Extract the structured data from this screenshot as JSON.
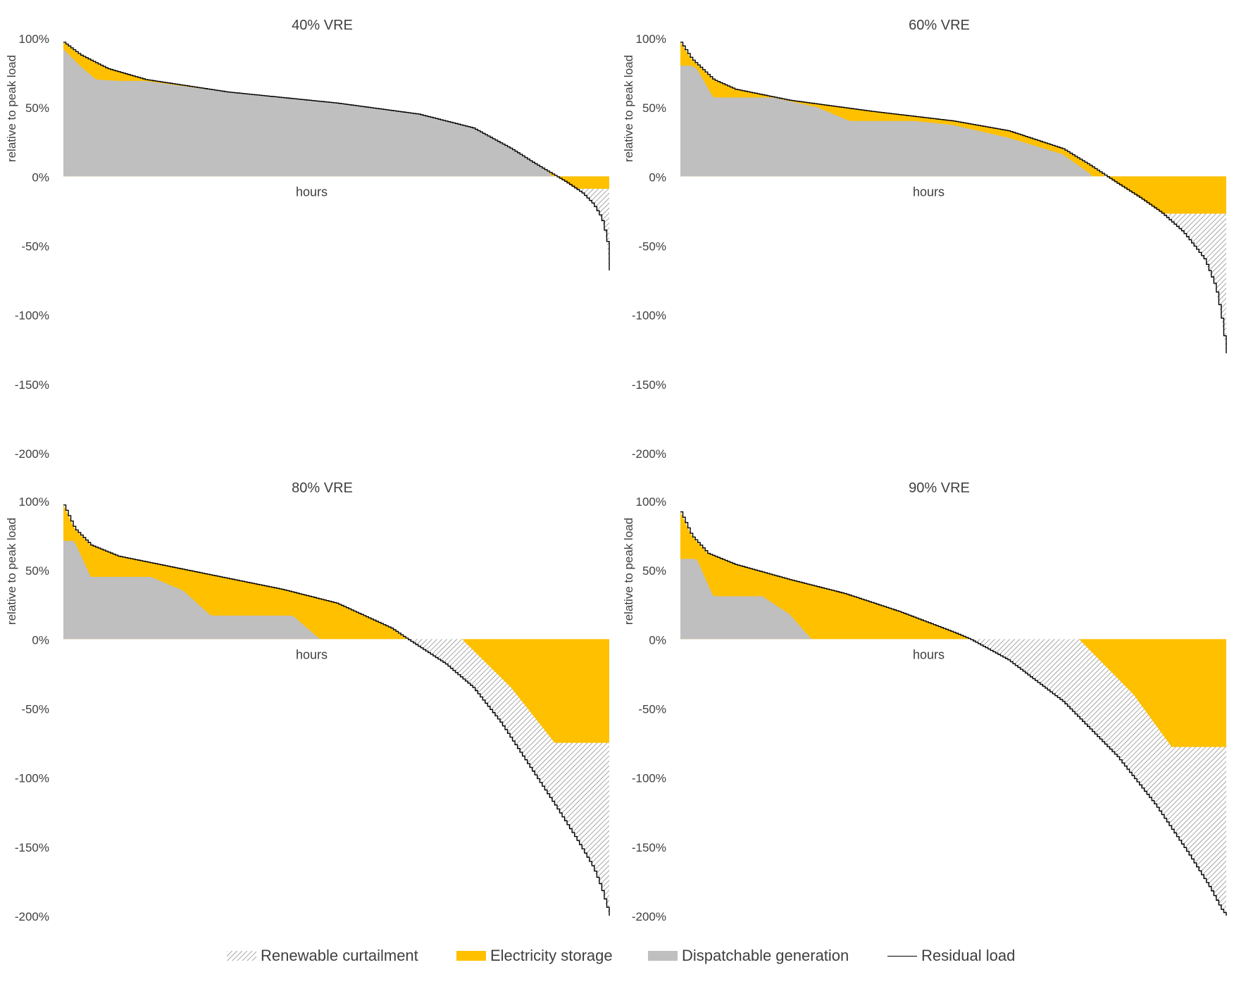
{
  "colors": {
    "dispatchable": "#bfbfbf",
    "storage": "#ffc000",
    "curtailment_line": "#808080",
    "residual": "#000000",
    "text": "#404040"
  },
  "legend": {
    "curtailment": "Renewable curtailment",
    "storage": "Electricity storage",
    "dispatchable": "Dispatchable generation",
    "residual": "Residual load"
  },
  "chart_data": [
    {
      "type": "area",
      "title": "40% VRE",
      "xlabel": "hours",
      "ylabel": "relative to peak load",
      "yticks": [
        "100%",
        "50%",
        "0%",
        "-50%",
        "-100%",
        "-150%",
        "-200%"
      ],
      "ylim": [
        -200,
        100
      ],
      "residual_load": {
        "x": [
          0,
          0.03,
          0.08,
          0.15,
          0.3,
          0.5,
          0.65,
          0.75,
          0.82,
          0.86,
          0.89,
          0.92,
          0.95,
          0.97,
          0.985,
          0.995,
          1.0
        ],
        "y": [
          97,
          88,
          78,
          70,
          61,
          53,
          45,
          35,
          20,
          10,
          3,
          -4,
          -12,
          -20,
          -30,
          -45,
          -68
        ]
      },
      "dispatchable": {
        "x": [
          0,
          0.03,
          0.06,
          0.1,
          0.15,
          0.3,
          0.5,
          0.65,
          0.75,
          0.82,
          0.86,
          0.89,
          0.893,
          1.0
        ],
        "y": [
          92,
          80,
          70,
          69,
          69,
          61,
          53,
          45,
          35,
          20,
          10,
          3,
          0,
          0
        ]
      },
      "storage_floor": -9
    },
    {
      "type": "area",
      "title": "60% VRE",
      "xlabel": "hours",
      "ylabel": "relative to peak load",
      "yticks": [
        "100%",
        "50%",
        "0%",
        "-50%",
        "-100%",
        "-150%",
        "-200%"
      ],
      "ylim": [
        -200,
        100
      ],
      "residual_load": {
        "x": [
          0,
          0.02,
          0.06,
          0.1,
          0.2,
          0.35,
          0.5,
          0.6,
          0.7,
          0.75,
          0.8,
          0.84,
          0.88,
          0.92,
          0.96,
          0.98,
          0.99,
          1.0
        ],
        "y": [
          97,
          85,
          70,
          63,
          55,
          47,
          40,
          33,
          20,
          8,
          -5,
          -15,
          -26,
          -40,
          -60,
          -80,
          -100,
          -128
        ]
      },
      "dispatchable": {
        "x": [
          0,
          0.02,
          0.03,
          0.06,
          0.17,
          0.25,
          0.31,
          0.43,
          0.5,
          0.6,
          0.7,
          0.75,
          0.752,
          1.0
        ],
        "y": [
          80,
          80,
          78,
          57,
          57,
          50,
          40,
          40,
          37,
          28,
          16,
          2,
          0,
          0
        ]
      },
      "storage_floor": -27
    },
    {
      "type": "area",
      "title": "80% VRE",
      "xlabel": "hours",
      "ylabel": "relative to peak load",
      "yticks": [
        "100%",
        "50%",
        "0%",
        "-50%",
        "-100%",
        "-150%",
        "-200%"
      ],
      "ylim": [
        -200,
        100
      ],
      "residual_load": {
        "x": [
          0,
          0.02,
          0.05,
          0.1,
          0.2,
          0.3,
          0.4,
          0.5,
          0.6,
          0.63,
          0.7,
          0.75,
          0.8,
          0.85,
          0.9,
          0.94,
          0.97,
          0.985,
          1.0
        ],
        "y": [
          97,
          80,
          68,
          60,
          52,
          44,
          36,
          26,
          8,
          0,
          -18,
          -35,
          -60,
          -90,
          -120,
          -145,
          -165,
          -180,
          -200
        ]
      },
      "dispatchable": {
        "x": [
          0,
          0.02,
          0.05,
          0.16,
          0.22,
          0.27,
          0.42,
          0.47,
          0.48,
          1.0
        ],
        "y": [
          71,
          71,
          45,
          45,
          35,
          17,
          17,
          0,
          0,
          0
        ]
      },
      "storage_floor": -75,
      "storage_ramp": {
        "x": [
          0.73,
          0.82,
          0.9
        ],
        "y": [
          0,
          -35,
          -75
        ]
      }
    },
    {
      "type": "area",
      "title": "90% VRE",
      "xlabel": "hours",
      "ylabel": "relative to peak load",
      "yticks": [
        "100%",
        "50%",
        "0%",
        "-50%",
        "-100%",
        "-150%",
        "-200%"
      ],
      "ylim": [
        -200,
        100
      ],
      "residual_load": {
        "x": [
          0,
          0.02,
          0.05,
          0.1,
          0.2,
          0.3,
          0.4,
          0.5,
          0.53,
          0.6,
          0.7,
          0.8,
          0.87,
          0.93,
          0.97,
          0.99,
          1.0
        ],
        "y": [
          92,
          75,
          62,
          54,
          43,
          33,
          20,
          5,
          0,
          -15,
          -45,
          -85,
          -120,
          -155,
          -180,
          -195,
          -200
        ]
      },
      "dispatchable": {
        "x": [
          0,
          0.03,
          0.06,
          0.15,
          0.2,
          0.24,
          0.25,
          1.0
        ],
        "y": [
          58,
          58,
          31,
          31,
          18,
          0,
          0,
          0
        ]
      },
      "storage_floor": -78,
      "storage_ramp": {
        "x": [
          0.73,
          0.83,
          0.9
        ],
        "y": [
          0,
          -40,
          -78
        ]
      }
    }
  ]
}
